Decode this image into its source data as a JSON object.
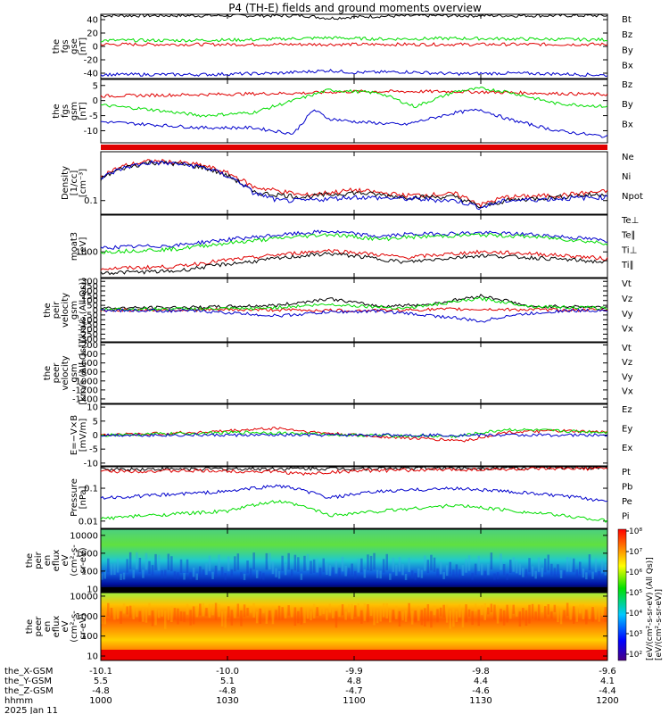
{
  "title": "P4 (TH-E) fields and ground moments overview",
  "colors": {
    "black": "#000000",
    "red": "#e00000",
    "green": "#00dd00",
    "blue": "#0000cc"
  },
  "chart_data": [
    {
      "type": "line",
      "id": "p1",
      "ylabel": [
        "the",
        "fgs",
        "gse",
        "[nT]"
      ],
      "ylim": [
        -48,
        48
      ],
      "yticks": [
        40,
        20,
        0,
        -20,
        -40
      ],
      "series": [
        {
          "name": "Bt",
          "color": "#000000",
          "x": [
            0,
            0.2,
            0.4,
            0.45,
            0.5,
            0.55,
            0.65,
            0.8,
            0.9,
            1
          ],
          "y": [
            46,
            46,
            46,
            42,
            44,
            45,
            46,
            46,
            46,
            46
          ]
        },
        {
          "name": "Bz",
          "color": "#e00000",
          "x": [
            0,
            0.3,
            0.5,
            0.7,
            1
          ],
          "y": [
            3,
            3,
            3,
            3,
            3
          ]
        },
        {
          "name": "By",
          "color": "#00dd00",
          "x": [
            0,
            0.15,
            0.3,
            0.45,
            0.5,
            0.55,
            0.7,
            0.85,
            1
          ],
          "y": [
            9,
            9,
            10,
            13,
            12,
            11,
            12,
            11,
            10
          ]
        },
        {
          "name": "Bx",
          "color": "#0000cc",
          "x": [
            0,
            0.2,
            0.35,
            0.45,
            0.5,
            0.6,
            0.7,
            0.8,
            0.9,
            1
          ],
          "y": [
            -42,
            -42,
            -40,
            -36,
            -39,
            -38,
            -41,
            -40,
            -41,
            -43
          ]
        }
      ]
    },
    {
      "type": "line",
      "id": "p2",
      "ylabel": [
        "the",
        "fgs",
        "gsm",
        "[nT]"
      ],
      "ylim": [
        -14,
        7
      ],
      "yticks": [
        5,
        0,
        -5,
        -10
      ],
      "series": [
        {
          "name": "Bz",
          "color": "#e00000",
          "x": [
            0,
            0.2,
            0.4,
            0.5,
            0.7,
            0.85,
            1
          ],
          "y": [
            1.5,
            2,
            2.5,
            3,
            3,
            2.5,
            2
          ]
        },
        {
          "name": "By",
          "color": "#00dd00",
          "x": [
            0,
            0.1,
            0.2,
            0.3,
            0.38,
            0.45,
            0.5,
            0.55,
            0.62,
            0.7,
            0.75,
            0.8,
            0.9,
            1
          ],
          "y": [
            -1.5,
            -3,
            -5,
            -4,
            0,
            3.5,
            3,
            2.5,
            -2,
            3,
            4,
            3,
            -1,
            -2
          ]
        },
        {
          "name": "Bx",
          "color": "#0000cc",
          "x": [
            0,
            0.1,
            0.2,
            0.3,
            0.38,
            0.42,
            0.45,
            0.5,
            0.6,
            0.7,
            0.75,
            0.8,
            0.9,
            1
          ],
          "y": [
            -7,
            -8,
            -9,
            -9,
            -11,
            -3,
            -6,
            -7,
            -8,
            -4,
            -3,
            -6,
            -10,
            -12
          ]
        }
      ]
    },
    {
      "type": "line",
      "id": "p3",
      "ylog": true,
      "ylabel": [
        "Density",
        "[1/cc]",
        "[cm⁻³]"
      ],
      "ylim": [
        0.05,
        1.2
      ],
      "yticks": [
        0.1
      ],
      "series": [
        {
          "name": "Ne",
          "color": "#e00000",
          "x": [
            0,
            0.05,
            0.1,
            0.15,
            0.2,
            0.25,
            0.3,
            0.4,
            0.5,
            0.6,
            0.7,
            0.75,
            0.8,
            0.9,
            1
          ],
          "y": [
            0.35,
            0.6,
            0.75,
            0.7,
            0.6,
            0.4,
            0.2,
            0.13,
            0.17,
            0.13,
            0.14,
            0.08,
            0.12,
            0.13,
            0.16
          ]
        },
        {
          "name": "Ni",
          "color": "#000000",
          "x": [
            0,
            0.05,
            0.1,
            0.15,
            0.2,
            0.25,
            0.3,
            0.4,
            0.5,
            0.6,
            0.7,
            0.75,
            0.8,
            0.9,
            1
          ],
          "y": [
            0.3,
            0.55,
            0.7,
            0.65,
            0.55,
            0.35,
            0.15,
            0.12,
            0.15,
            0.12,
            0.12,
            0.07,
            0.1,
            0.12,
            0.14
          ]
        },
        {
          "name": "Npot",
          "color": "#0000cc",
          "x": [
            0,
            0.05,
            0.1,
            0.15,
            0.2,
            0.25,
            0.3,
            0.35,
            0.4,
            0.5,
            0.6,
            0.7,
            0.75,
            0.8,
            0.9,
            1
          ],
          "y": [
            0.3,
            0.55,
            0.7,
            0.65,
            0.55,
            0.35,
            0.15,
            0.1,
            0.1,
            0.12,
            0.11,
            0.1,
            0.07,
            0.1,
            0.11,
            0.12
          ]
        }
      ]
    },
    {
      "type": "line",
      "id": "p4",
      "ylog": true,
      "ylabel": [
        "moat3",
        "[eV]"
      ],
      "ylim": [
        200,
        10000
      ],
      "yticks": [
        1000
      ],
      "series": [
        {
          "name": "Te⊥",
          "color": "#e00000",
          "x": [
            0,
            0.15,
            0.3,
            0.45,
            0.6,
            0.75,
            0.85,
            1
          ],
          "y": [
            350,
            400,
            700,
            1100,
            700,
            1000,
            900,
            650
          ]
        },
        {
          "name": "Te∥",
          "color": "#000000",
          "x": [
            0,
            0.15,
            0.3,
            0.45,
            0.6,
            0.75,
            0.85,
            1
          ],
          "y": [
            270,
            300,
            550,
            900,
            520,
            800,
            700,
            520
          ]
        },
        {
          "name": "Ti⊥",
          "color": "#0000cc",
          "x": [
            0,
            0.15,
            0.3,
            0.45,
            0.55,
            0.6,
            0.75,
            0.85,
            1
          ],
          "y": [
            1300,
            1500,
            2500,
            3600,
            2600,
            3000,
            3300,
            3000,
            2000
          ]
        },
        {
          "name": "Ti∥",
          "color": "#00dd00",
          "x": [
            0,
            0.15,
            0.3,
            0.45,
            0.55,
            0.6,
            0.75,
            0.85,
            1
          ],
          "y": [
            1000,
            1200,
            2000,
            3000,
            2200,
            2500,
            2900,
            2600,
            1700
          ]
        }
      ]
    },
    {
      "type": "line",
      "id": "p5",
      "ylabel": [
        "the",
        "peir",
        "velocity",
        "gsm",
        "[km/s (All Qs)]"
      ],
      "ylim": [
        -330,
        330
      ],
      "yticks": [
        300,
        250,
        200,
        150,
        100,
        50,
        0,
        -50,
        -100,
        -150,
        -200,
        -250,
        -300
      ],
      "series": [
        {
          "name": "Vt",
          "color": "#000000",
          "x": [
            0,
            0.2,
            0.35,
            0.45,
            0.55,
            0.65,
            0.75,
            0.8,
            0.85,
            0.9,
            1
          ],
          "y": [
            20,
            30,
            50,
            120,
            40,
            60,
            150,
            100,
            30,
            40,
            30
          ]
        },
        {
          "name": "Vz",
          "color": "#e00000",
          "x": [
            0,
            0.3,
            0.5,
            0.7,
            1
          ],
          "y": [
            0,
            5,
            -5,
            10,
            0
          ]
        },
        {
          "name": "Vy",
          "color": "#00dd00",
          "x": [
            0,
            0.3,
            0.45,
            0.6,
            0.75,
            0.85,
            1
          ],
          "y": [
            10,
            15,
            60,
            20,
            120,
            40,
            20
          ]
        },
        {
          "name": "Vx",
          "color": "#0000cc",
          "x": [
            0,
            0.2,
            0.35,
            0.45,
            0.55,
            0.7,
            0.75,
            0.8,
            0.9,
            1
          ],
          "y": [
            0,
            -10,
            -60,
            -20,
            -10,
            -80,
            -120,
            -60,
            -10,
            0
          ]
        }
      ]
    },
    {
      "type": "line",
      "id": "p6",
      "ylabel": [
        "the",
        "peer",
        "velocity",
        "gsm",
        "[km/s (All Qs)]"
      ],
      "ylim": [
        -1500,
        -150
      ],
      "yticks": [
        -200,
        -400,
        -600,
        -800,
        -1000,
        -1200,
        -1400
      ],
      "legend": [
        "Vt",
        "Vz",
        "Vy",
        "Vx"
      ],
      "series": []
    },
    {
      "type": "line",
      "id": "p7",
      "ylabel": [
        "E=−V×B",
        "[mV/m]"
      ],
      "ylim": [
        -11,
        11
      ],
      "yticks": [
        10,
        5,
        0,
        -5,
        -10
      ],
      "series": [
        {
          "name": "Ez",
          "color": "#e00000",
          "x": [
            0,
            0.2,
            0.35,
            0.42,
            0.5,
            0.6,
            0.72,
            0.8,
            0.9,
            1
          ],
          "y": [
            0,
            1,
            2.5,
            1,
            0,
            -1,
            -2,
            1,
            1.5,
            1
          ]
        },
        {
          "name": "Ey",
          "color": "#00dd00",
          "x": [
            0,
            0.3,
            0.5,
            0.7,
            0.8,
            1
          ],
          "y": [
            0,
            1,
            0,
            -0.5,
            2,
            1
          ]
        },
        {
          "name": "Ex",
          "color": "#0000cc",
          "x": [
            0,
            0.5,
            1
          ],
          "y": [
            0,
            0,
            0
          ]
        }
      ]
    },
    {
      "type": "line",
      "id": "p8",
      "ylog": true,
      "ylabel": [
        "Pressure",
        "[nPa]"
      ],
      "ylim": [
        0.006,
        0.45
      ],
      "yticks": [
        0.1,
        0.01
      ],
      "series": [
        {
          "name": "Pt",
          "color": "#000000",
          "x": [
            0,
            0.3,
            0.5,
            0.7,
            1
          ],
          "y": [
            0.38,
            0.39,
            0.4,
            0.41,
            0.42
          ]
        },
        {
          "name": "Pb",
          "color": "#e00000",
          "x": [
            0,
            0.2,
            0.35,
            0.4,
            0.5,
            0.7,
            1
          ],
          "y": [
            0.33,
            0.34,
            0.32,
            0.27,
            0.34,
            0.37,
            0.4
          ]
        },
        {
          "name": "Pe",
          "color": "#00dd00",
          "x": [
            0,
            0.1,
            0.25,
            0.35,
            0.45,
            0.55,
            0.7,
            0.85,
            1
          ],
          "y": [
            0.012,
            0.015,
            0.02,
            0.04,
            0.015,
            0.02,
            0.03,
            0.018,
            0.01
          ]
        },
        {
          "name": "Pi",
          "color": "#0000cc",
          "x": [
            0,
            0.1,
            0.25,
            0.35,
            0.45,
            0.55,
            0.7,
            0.85,
            1
          ],
          "y": [
            0.05,
            0.06,
            0.08,
            0.12,
            0.05,
            0.08,
            0.1,
            0.07,
            0.04
          ]
        }
      ]
    },
    {
      "type": "heatmap",
      "id": "p9",
      "ylog": true,
      "ylabel": [
        "the",
        "peir",
        "en",
        "eflux",
        "eV",
        "(cm²-s-",
        "sr-eV)"
      ],
      "ylim": [
        7,
        22000
      ],
      "yticks": [
        10000,
        1000,
        100,
        10
      ],
      "ytick_labels": [
        "10000",
        "1000",
        "100",
        "10"
      ]
    },
    {
      "type": "heatmap",
      "id": "p10",
      "ylog": true,
      "ylabel": [
        "the",
        "peer",
        "en",
        "eflux",
        "eV",
        "(cm²-s-",
        "sr-eV)"
      ],
      "ylim": [
        6,
        15000
      ],
      "yticks": [
        10000,
        1000,
        100,
        10
      ],
      "ytick_labels": [
        "10000",
        "1000",
        "100",
        "10"
      ]
    }
  ],
  "colorbar": {
    "label": "[eV/(cm²-s-sr-eV)]",
    "side_labels": [
      "[eV/(cm²-s-sr-eV) (All Qs)]"
    ],
    "ticks": [
      "10⁸",
      "10⁷",
      "10⁶",
      "10⁵",
      "10⁴",
      "10³",
      "10²"
    ]
  },
  "xaxis": {
    "rows": [
      {
        "label": "the_X-GSM",
        "values": [
          "-10.1",
          "-10.0",
          "-9.9",
          "-9.8",
          "-9.6"
        ]
      },
      {
        "label": "the_Y-GSM",
        "values": [
          "5.5",
          "5.1",
          "4.8",
          "4.4",
          "4.1"
        ]
      },
      {
        "label": "the_Z-GSM",
        "values": [
          "-4.8",
          "-4.8",
          "-4.7",
          "-4.6",
          "-4.4"
        ]
      },
      {
        "label": "hhmm",
        "values": [
          "1000",
          "1030",
          "1100",
          "1130",
          "1200"
        ]
      }
    ],
    "date": "2025 Jan 11"
  }
}
